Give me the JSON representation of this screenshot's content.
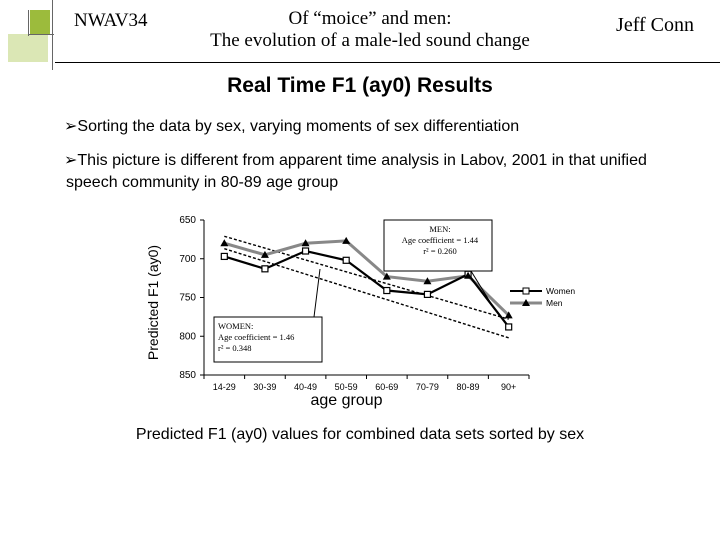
{
  "header": {
    "conference": "NWAV34",
    "title_line1": "Of “moice” and men:",
    "title_line2": "The evolution of a male-led sound change",
    "author": "Jeff Conn"
  },
  "slide": {
    "heading": "Real Time F1 (ay0) Results",
    "bullets": [
      "Sorting the data by sex, varying moments of sex differentiation",
      "This picture is different from apparent time analysis in Labov, 2001  in that unified speech community in 80-89 age group"
    ],
    "caption": "Predicted F1 (ay0) values for combined data sets sorted by sex"
  },
  "colors": {
    "decor_green": "#9cbb3c",
    "men_line": "#888888",
    "women_line": "#000000"
  },
  "chart_data": {
    "type": "line",
    "title": "",
    "xlabel": "age group",
    "ylabel": "Predicted F1 (ay0)",
    "categories": [
      "14-29",
      "30-39",
      "40-49",
      "50-59",
      "60-69",
      "70-79",
      "80-89",
      "90+"
    ],
    "yticks": [
      650,
      700,
      750,
      800,
      850
    ],
    "ylim": [
      850,
      650
    ],
    "y_inverted": true,
    "series": [
      {
        "name": "Women",
        "marker": "square",
        "values": [
          697,
          713,
          690,
          702,
          741,
          746,
          720,
          788
        ]
      },
      {
        "name": "Men",
        "marker": "triangle",
        "values": [
          680,
          695,
          680,
          677,
          723,
          729,
          722,
          773
        ]
      }
    ],
    "trendlines": [
      {
        "series": "Women",
        "style": "dashed",
        "start": 671,
        "end": 778
      },
      {
        "series": "Men",
        "style": "dashed",
        "start": 687,
        "end": 802
      }
    ],
    "legend": {
      "position": "right",
      "entries": [
        "Women",
        "Men"
      ]
    },
    "annotations": [
      {
        "id": "men",
        "lines": [
          "MEN:",
          "Age coefficient = 1.44",
          "r² = 0.260"
        ]
      },
      {
        "id": "women",
        "lines": [
          "WOMEN:",
          "Age coefficient = 1.46",
          "r² = 0.348"
        ]
      }
    ]
  }
}
